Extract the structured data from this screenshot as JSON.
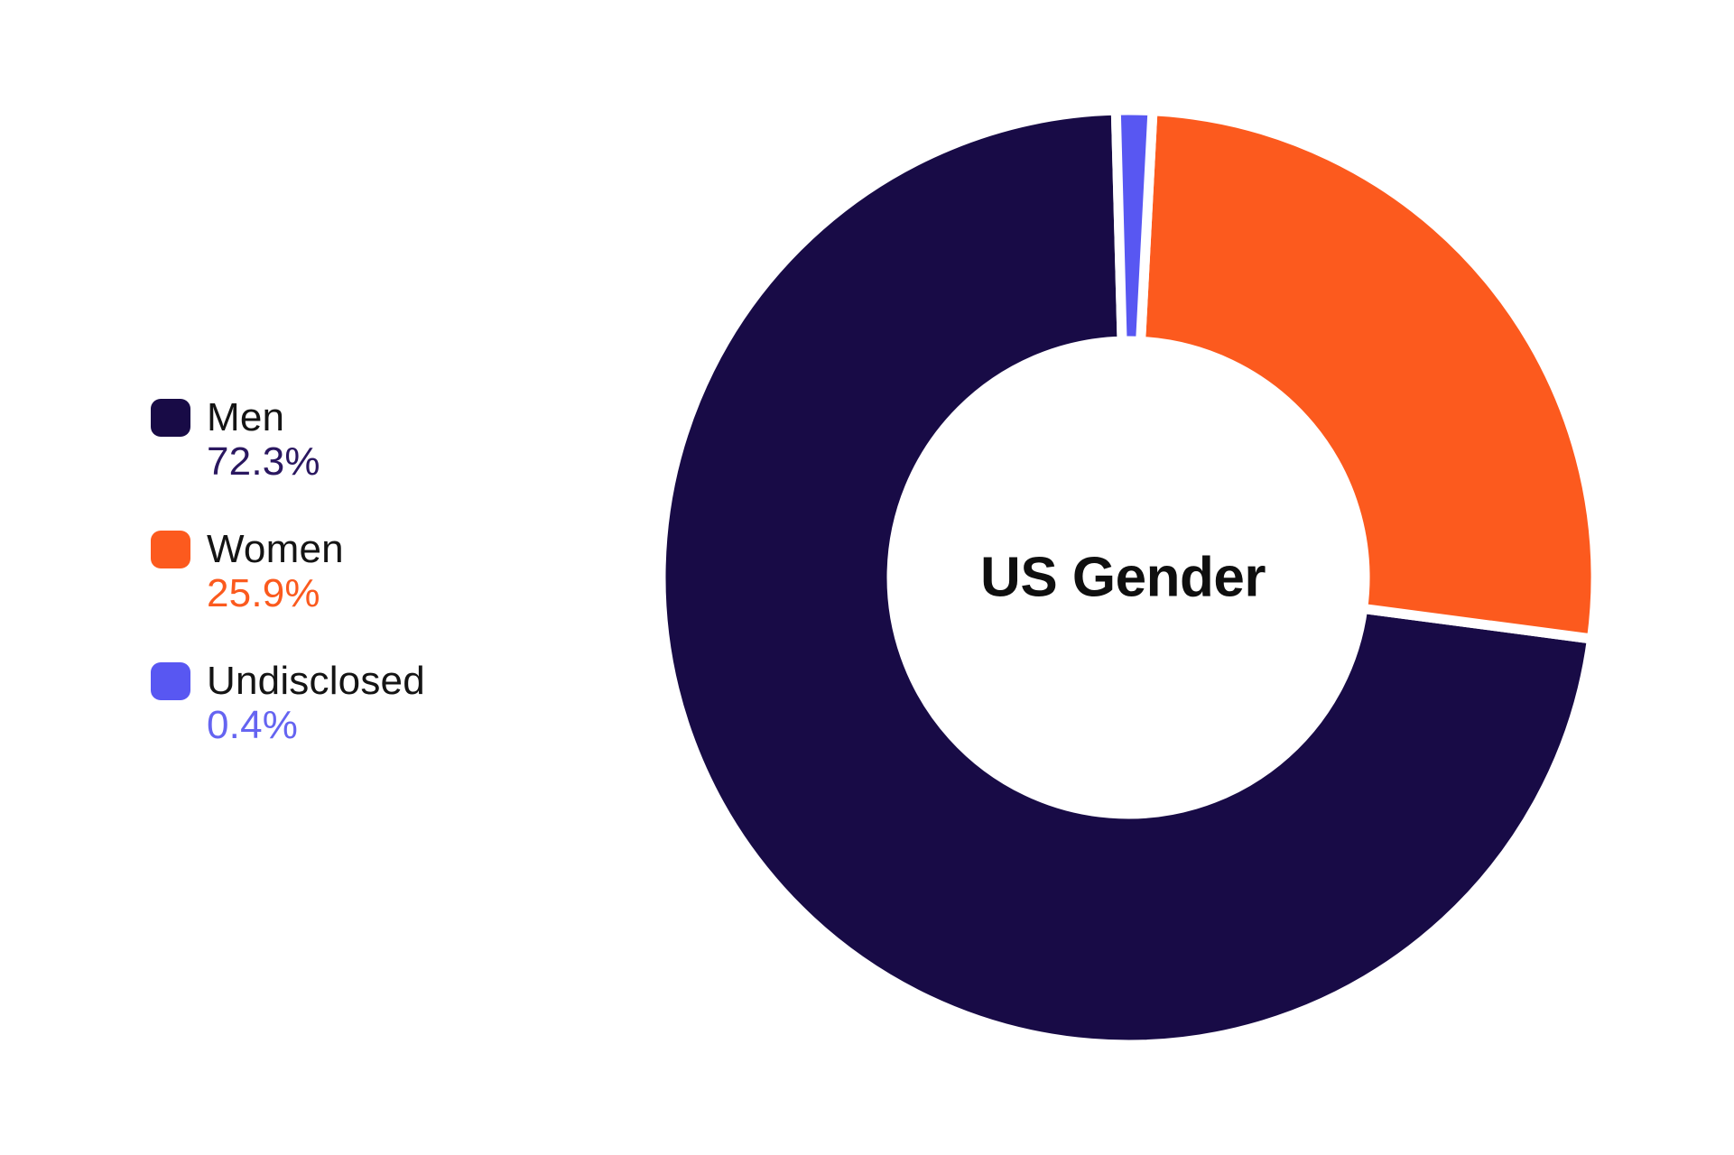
{
  "page": {
    "background": "#ffffff"
  },
  "chart_data": {
    "type": "pie",
    "variant": "donut",
    "center_label": "US Gender",
    "legend_position": "left",
    "draw_order_clockwise_from_top": [
      "Undisclosed",
      "Women",
      "Men"
    ],
    "separator_color": "#ffffff",
    "slices": [
      {
        "label": "Men",
        "value": 72.3,
        "display": "72.3%",
        "color": "#180B46",
        "value_color": "#2A1760"
      },
      {
        "label": "Women",
        "value": 25.9,
        "display": "25.9%",
        "color": "#FC5A1E",
        "value_color": "#FB5A1E"
      },
      {
        "label": "Undisclosed",
        "value": 0.4,
        "display": "0.4%",
        "color": "#5857F2",
        "value_color": "#6564F1"
      }
    ]
  }
}
